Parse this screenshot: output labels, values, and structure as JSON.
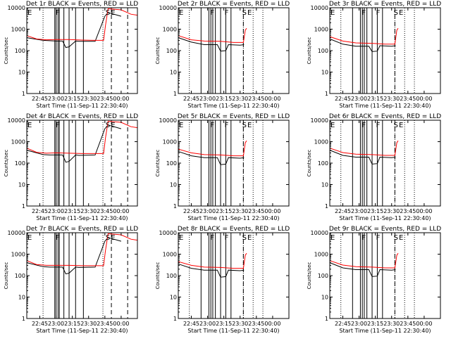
{
  "figure": {
    "x_label": "Start Time (11-Sep-11 22:30:40)",
    "y_label": "Counts/sec",
    "x_ticks": [
      "22:45",
      "23:00",
      "23:15",
      "23:30",
      "23:45",
      "00:00"
    ],
    "y_ticks": [
      "1",
      "10",
      "100",
      "1000",
      "10000"
    ],
    "colors": {
      "events": "#000000",
      "lld": "#ff0000",
      "axes": "#000000",
      "background": "#ffffff"
    }
  },
  "chart_data": [
    {
      "type": "line",
      "title": "Det 1r BLACK = Events, RED = LLD",
      "yscale": "log",
      "xlim": [
        22.55,
        24.25
      ],
      "ylim": [
        1,
        10000
      ],
      "x_ticks": [
        "22:45",
        "23:00",
        "23:15",
        "23:30",
        "23:45",
        "00:00"
      ],
      "y_ticks": [
        "1",
        "10",
        "100",
        "1000",
        "10000"
      ],
      "markers": [
        {
          "label": "E",
          "x": 22.55
        },
        {
          "label": "F",
          "x": 22.98
        },
        {
          "label": "S",
          "x": 23.75
        },
        {
          "label": "E",
          "x": 23.83
        }
      ],
      "series": [
        {
          "name": "Events",
          "color": "#000000",
          "x": [
            22.55,
            22.8,
            22.9,
            23.0,
            23.1,
            23.15,
            23.2,
            23.3,
            23.35,
            23.6,
            23.75,
            23.8,
            24.0
          ],
          "y": [
            400,
            300,
            290,
            280,
            280,
            140,
            150,
            280,
            270,
            270,
            4000,
            6000,
            4000
          ]
        },
        {
          "name": "LLD",
          "color": "#ff0000",
          "x": [
            22.55,
            22.7,
            22.85,
            23.0,
            23.2,
            23.4,
            23.6,
            23.73,
            23.76,
            23.8,
            24.0,
            24.15,
            24.25
          ],
          "y": [
            500,
            350,
            320,
            330,
            330,
            310,
            300,
            300,
            1500,
            9000,
            8000,
            5000,
            4500
          ]
        }
      ],
      "vlines_solid": [
        22.98,
        23.0,
        23.03,
        23.05,
        23.12,
        23.2,
        23.3,
        23.42
      ],
      "vlines_dotted": [
        22.8,
        23.72
      ],
      "vlines_dashed": [
        23.85,
        24.1
      ]
    },
    {
      "type": "line",
      "title": "Det 2r BLACK = Events, RED = LLD",
      "yscale": "log",
      "xlim": [
        22.55,
        24.25
      ],
      "ylim": [
        1,
        10000
      ],
      "x_ticks": [
        "22:45",
        "23:00",
        "23:15",
        "23:30",
        "23:45",
        "00:00"
      ],
      "y_ticks": [
        "1",
        "10",
        "100",
        "1000",
        "10000"
      ],
      "markers": [
        {
          "label": "E",
          "x": 22.55
        },
        {
          "label": "F",
          "x": 23.03
        },
        {
          "label": "F",
          "x": 23.25
        },
        {
          "label": "S",
          "x": 23.52
        },
        {
          "label": "E",
          "x": 23.6
        }
      ],
      "series": [
        {
          "name": "Events",
          "color": "#000000",
          "x": [
            22.55,
            22.75,
            22.95,
            23.05,
            23.15,
            23.2,
            23.28,
            23.32,
            23.5,
            23.56
          ],
          "y": [
            400,
            250,
            190,
            190,
            190,
            95,
            100,
            190,
            180,
            190
          ]
        },
        {
          "name": "LLD",
          "color": "#ff0000",
          "x": [
            22.55,
            22.75,
            22.95,
            23.2,
            23.4,
            23.55,
            23.58,
            23.6
          ],
          "y": [
            500,
            320,
            280,
            270,
            240,
            240,
            900,
            1100
          ]
        }
      ],
      "vlines_solid": [
        22.9,
        23.02,
        23.05,
        23.08,
        23.12,
        23.2,
        23.28,
        23.36
      ],
      "vlines_dotted": [
        22.72,
        23.55,
        23.7,
        23.85
      ],
      "vlines_dashed": [
        23.55
      ]
    },
    {
      "type": "line",
      "title": "Det 3r BLACK = Events, RED = LLD",
      "yscale": "log",
      "xlim": [
        22.55,
        24.25
      ],
      "ylim": [
        1,
        10000
      ],
      "x_ticks": [
        "22:45",
        "23:00",
        "23:15",
        "23:30",
        "23:45",
        "00:00"
      ],
      "y_ticks": [
        "1",
        "10",
        "100",
        "1000",
        "10000"
      ],
      "markers": [
        {
          "label": "E",
          "x": 22.55
        },
        {
          "label": "F",
          "x": 23.03
        },
        {
          "label": "F",
          "x": 23.25
        },
        {
          "label": "S",
          "x": 23.52
        },
        {
          "label": "E",
          "x": 23.6
        }
      ],
      "series": [
        {
          "name": "Events",
          "color": "#000000",
          "x": [
            22.55,
            22.75,
            22.95,
            23.05,
            23.15,
            23.2,
            23.28,
            23.32,
            23.5,
            23.56
          ],
          "y": [
            350,
            200,
            160,
            160,
            160,
            90,
            95,
            170,
            160,
            170
          ]
        },
        {
          "name": "LLD",
          "color": "#ff0000",
          "x": [
            22.55,
            22.75,
            22.95,
            23.2,
            23.4,
            23.55,
            23.58,
            23.6
          ],
          "y": [
            450,
            280,
            230,
            220,
            200,
            200,
            900,
            1100
          ]
        }
      ],
      "vlines_solid": [
        22.9,
        23.02,
        23.05,
        23.08,
        23.12,
        23.2,
        23.28,
        23.36
      ],
      "vlines_dotted": [
        22.72,
        23.55,
        23.7,
        23.85
      ],
      "vlines_dashed": [
        23.55
      ]
    },
    {
      "type": "line",
      "title": "Det 4r BLACK = Events, RED = LLD",
      "yscale": "log",
      "xlim": [
        22.55,
        24.25
      ],
      "ylim": [
        1,
        10000
      ],
      "x_ticks": [
        "22:45",
        "23:00",
        "23:15",
        "23:30",
        "23:45",
        "00:00"
      ],
      "y_ticks": [
        "1",
        "10",
        "100",
        "1000",
        "10000"
      ],
      "markers": [
        {
          "label": "E",
          "x": 22.55
        },
        {
          "label": "F",
          "x": 22.98
        },
        {
          "label": "S",
          "x": 23.75
        },
        {
          "label": "E",
          "x": 23.83
        }
      ],
      "series": [
        {
          "name": "Events",
          "color": "#000000",
          "x": [
            22.55,
            22.8,
            22.9,
            23.0,
            23.1,
            23.15,
            23.2,
            23.3,
            23.35,
            23.6,
            23.75,
            23.8,
            24.0
          ],
          "y": [
            400,
            250,
            240,
            240,
            240,
            110,
            120,
            240,
            230,
            240,
            4000,
            6000,
            4000
          ]
        },
        {
          "name": "LLD",
          "color": "#ff0000",
          "x": [
            22.55,
            22.7,
            22.85,
            23.0,
            23.2,
            23.4,
            23.6,
            23.73,
            23.76,
            23.8,
            24.0,
            24.15,
            24.25
          ],
          "y": [
            500,
            320,
            290,
            300,
            290,
            280,
            280,
            280,
            1500,
            9000,
            8000,
            5000,
            4500
          ]
        }
      ],
      "vlines_solid": [
        22.98,
        23.0,
        23.03,
        23.05,
        23.12,
        23.2,
        23.3,
        23.42
      ],
      "vlines_dotted": [
        22.8,
        23.72
      ],
      "vlines_dashed": [
        23.85,
        24.1
      ]
    },
    {
      "type": "line",
      "title": "Det 5r BLACK = Events, RED = LLD",
      "yscale": "log",
      "xlim": [
        22.55,
        24.25
      ],
      "ylim": [
        1,
        10000
      ],
      "x_ticks": [
        "22:45",
        "23:00",
        "23:15",
        "23:30",
        "23:45",
        "00:00"
      ],
      "y_ticks": [
        "1",
        "10",
        "100",
        "1000",
        "10000"
      ],
      "markers": [
        {
          "label": "E",
          "x": 22.55
        },
        {
          "label": "F",
          "x": 23.03
        },
        {
          "label": "F",
          "x": 23.25
        },
        {
          "label": "S",
          "x": 23.52
        },
        {
          "label": "E",
          "x": 23.6
        }
      ],
      "series": [
        {
          "name": "Events",
          "color": "#000000",
          "x": [
            22.55,
            22.75,
            22.95,
            23.05,
            23.15,
            23.2,
            23.28,
            23.32,
            23.5,
            23.56
          ],
          "y": [
            350,
            220,
            180,
            180,
            180,
            85,
            90,
            180,
            170,
            180
          ]
        },
        {
          "name": "LLD",
          "color": "#ff0000",
          "x": [
            22.55,
            22.75,
            22.95,
            23.2,
            23.4,
            23.55,
            23.58,
            23.6
          ],
          "y": [
            450,
            300,
            250,
            240,
            220,
            220,
            900,
            1100
          ]
        }
      ],
      "vlines_solid": [
        22.9,
        23.02,
        23.05,
        23.08,
        23.12,
        23.2,
        23.28,
        23.36
      ],
      "vlines_dotted": [
        22.72,
        23.55,
        23.7,
        23.85
      ],
      "vlines_dashed": [
        23.55
      ]
    },
    {
      "type": "line",
      "title": "Det 6r BLACK = Events, RED = LLD",
      "yscale": "log",
      "xlim": [
        22.55,
        24.25
      ],
      "ylim": [
        1,
        10000
      ],
      "x_ticks": [
        "22:45",
        "23:00",
        "23:15",
        "23:30",
        "23:45",
        "00:00"
      ],
      "y_ticks": [
        "1",
        "10",
        "100",
        "1000",
        "10000"
      ],
      "markers": [
        {
          "label": "E",
          "x": 22.55
        },
        {
          "label": "F",
          "x": 23.03
        },
        {
          "label": "F",
          "x": 23.25
        },
        {
          "label": "S",
          "x": 23.52
        },
        {
          "label": "E",
          "x": 23.6
        }
      ],
      "series": [
        {
          "name": "Events",
          "color": "#000000",
          "x": [
            22.55,
            22.75,
            22.95,
            23.05,
            23.15,
            23.2,
            23.28,
            23.32,
            23.5,
            23.56
          ],
          "y": [
            400,
            230,
            190,
            190,
            190,
            90,
            95,
            190,
            180,
            190
          ]
        },
        {
          "name": "LLD",
          "color": "#ff0000",
          "x": [
            22.55,
            22.75,
            22.95,
            23.2,
            23.4,
            23.55,
            23.58,
            23.6
          ],
          "y": [
            500,
            310,
            260,
            250,
            230,
            230,
            900,
            1100
          ]
        }
      ],
      "vlines_solid": [
        22.9,
        23.02,
        23.05,
        23.08,
        23.12,
        23.2,
        23.28,
        23.36
      ],
      "vlines_dotted": [
        22.72,
        23.55,
        23.7,
        23.85
      ],
      "vlines_dashed": [
        23.55
      ]
    },
    {
      "type": "line",
      "title": "Det 7r BLACK = Events, RED = LLD",
      "yscale": "log",
      "xlim": [
        22.55,
        24.25
      ],
      "ylim": [
        1,
        10000
      ],
      "x_ticks": [
        "22:45",
        "23:00",
        "23:15",
        "23:30",
        "23:45",
        "00:00"
      ],
      "y_ticks": [
        "1",
        "10",
        "100",
        "1000",
        "10000"
      ],
      "markers": [
        {
          "label": "E",
          "x": 22.55
        },
        {
          "label": "F",
          "x": 22.98
        },
        {
          "label": "S",
          "x": 23.75
        },
        {
          "label": "E",
          "x": 23.83
        }
      ],
      "series": [
        {
          "name": "Events",
          "color": "#000000",
          "x": [
            22.55,
            22.8,
            22.9,
            23.0,
            23.1,
            23.15,
            23.2,
            23.3,
            23.35,
            23.6,
            23.75,
            23.8,
            24.0
          ],
          "y": [
            400,
            260,
            250,
            250,
            250,
            120,
            130,
            250,
            240,
            250,
            4000,
            6000,
            4000
          ]
        },
        {
          "name": "LLD",
          "color": "#ff0000",
          "x": [
            22.55,
            22.7,
            22.85,
            23.0,
            23.2,
            23.4,
            23.6,
            23.73,
            23.76,
            23.8,
            24.0,
            24.15,
            24.25
          ],
          "y": [
            500,
            330,
            300,
            300,
            300,
            290,
            290,
            290,
            1500,
            9000,
            8000,
            5000,
            4500
          ]
        }
      ],
      "vlines_solid": [
        22.98,
        23.0,
        23.03,
        23.05,
        23.12,
        23.2,
        23.3,
        23.42
      ],
      "vlines_dotted": [
        22.8,
        23.72
      ],
      "vlines_dashed": [
        23.85,
        24.1
      ]
    },
    {
      "type": "line",
      "title": "Det 8r BLACK = Events, RED = LLD",
      "yscale": "log",
      "xlim": [
        22.55,
        24.25
      ],
      "ylim": [
        1,
        10000
      ],
      "x_ticks": [
        "22:45",
        "23:00",
        "23:15",
        "23:30",
        "23:45",
        "00:00"
      ],
      "y_ticks": [
        "1",
        "10",
        "100",
        "1000",
        "10000"
      ],
      "markers": [
        {
          "label": "E",
          "x": 22.55
        },
        {
          "label": "F",
          "x": 23.03
        },
        {
          "label": "F",
          "x": 23.25
        },
        {
          "label": "S",
          "x": 23.52
        },
        {
          "label": "E",
          "x": 23.6
        }
      ],
      "series": [
        {
          "name": "Events",
          "color": "#000000",
          "x": [
            22.55,
            22.75,
            22.95,
            23.05,
            23.15,
            23.2,
            23.28,
            23.32,
            23.5,
            23.56
          ],
          "y": [
            350,
            220,
            180,
            180,
            180,
            85,
            90,
            180,
            170,
            180
          ]
        },
        {
          "name": "LLD",
          "color": "#ff0000",
          "x": [
            22.55,
            22.75,
            22.95,
            23.2,
            23.4,
            23.55,
            23.58,
            23.6
          ],
          "y": [
            450,
            300,
            250,
            240,
            220,
            220,
            900,
            1100
          ]
        }
      ],
      "vlines_solid": [
        22.9,
        23.02,
        23.05,
        23.08,
        23.12,
        23.2,
        23.28,
        23.36
      ],
      "vlines_dotted": [
        22.72,
        23.55,
        23.7,
        23.85
      ],
      "vlines_dashed": [
        23.55
      ]
    },
    {
      "type": "line",
      "title": "Det 9r BLACK = Events, RED = LLD",
      "yscale": "log",
      "xlim": [
        22.55,
        24.25
      ],
      "ylim": [
        1,
        10000
      ],
      "x_ticks": [
        "22:45",
        "23:00",
        "23:15",
        "23:30",
        "23:45",
        "00:00"
      ],
      "y_ticks": [
        "1",
        "10",
        "100",
        "1000",
        "10000"
      ],
      "markers": [
        {
          "label": "E",
          "x": 22.55
        },
        {
          "label": "F",
          "x": 23.03
        },
        {
          "label": "F",
          "x": 23.25
        },
        {
          "label": "S",
          "x": 23.52
        },
        {
          "label": "E",
          "x": 23.6
        }
      ],
      "series": [
        {
          "name": "Events",
          "color": "#000000",
          "x": [
            22.55,
            22.75,
            22.95,
            23.05,
            23.15,
            23.2,
            23.28,
            23.32,
            23.5,
            23.56
          ],
          "y": [
            400,
            230,
            190,
            190,
            190,
            90,
            95,
            190,
            180,
            190
          ]
        },
        {
          "name": "LLD",
          "color": "#ff0000",
          "x": [
            22.55,
            22.75,
            22.95,
            23.2,
            23.4,
            23.55,
            23.58,
            23.6
          ],
          "y": [
            500,
            310,
            260,
            250,
            230,
            230,
            900,
            1100
          ]
        }
      ],
      "vlines_solid": [
        22.9,
        23.02,
        23.05,
        23.08,
        23.12,
        23.2,
        23.28,
        23.36
      ],
      "vlines_dotted": [
        22.72,
        23.55,
        23.7,
        23.85
      ],
      "vlines_dashed": [
        23.55
      ]
    }
  ]
}
